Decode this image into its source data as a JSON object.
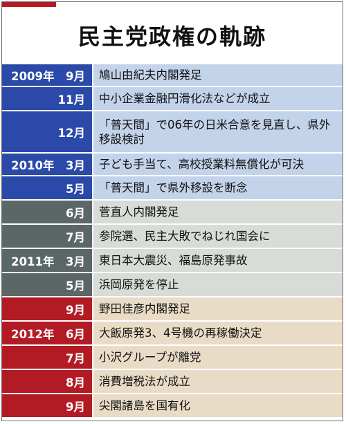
{
  "title": "民主党政権の軌跡",
  "colors": {
    "blue_date": "#2a49a8",
    "blue_event": "#c3d3ea",
    "gray_date": "#5b6667",
    "gray_event": "#d7dcd6",
    "red_date": "#b31b24",
    "red_event": "#e9dcc7",
    "accent": "#b31b24"
  },
  "rows": [
    {
      "date": "2009年　9月",
      "event": "鳩山由紀夫内閣発足",
      "theme": "blue"
    },
    {
      "date": "11月",
      "event": "中小企業金融円滑化法などが成立",
      "theme": "blue"
    },
    {
      "date": "12月",
      "event": "「普天間」で06年の日米合意を見直し、県外移設検討",
      "theme": "blue"
    },
    {
      "date": "2010年　3月",
      "event": "子ども手当て、高校授業料無償化が可決",
      "theme": "blue"
    },
    {
      "date": "5月",
      "event": "「普天間」で県外移設を断念",
      "theme": "blue"
    },
    {
      "date": "6月",
      "event": "菅直人内閣発足",
      "theme": "gray"
    },
    {
      "date": "7月",
      "event": "参院選、民主大敗でねじれ国会に",
      "theme": "gray"
    },
    {
      "date": "2011年　3月",
      "event": "東日本大震災、福島原発事故",
      "theme": "gray"
    },
    {
      "date": "5月",
      "event": "浜岡原発を停止",
      "theme": "gray"
    },
    {
      "date": "9月",
      "event": "野田佳彦内閣発足",
      "theme": "red"
    },
    {
      "date": "2012年　6月",
      "event": "大飯原発3、4号機の再稼働決定",
      "theme": "red"
    },
    {
      "date": "7月",
      "event": "小沢グループが離党",
      "theme": "red"
    },
    {
      "date": "8月",
      "event": "消費増税法が成立",
      "theme": "red"
    },
    {
      "date": "9月",
      "event": "尖閣諸島を国有化",
      "theme": "red"
    }
  ]
}
